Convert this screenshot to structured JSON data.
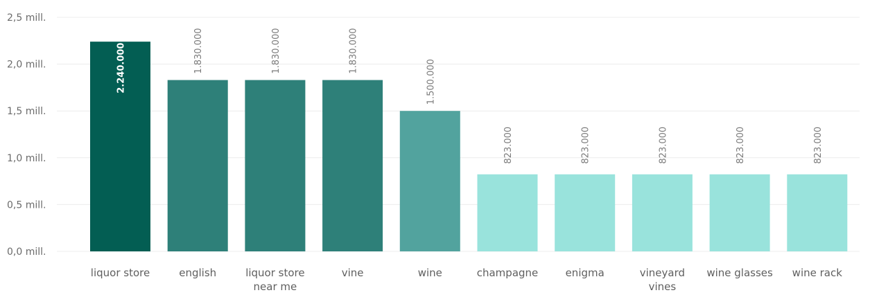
{
  "chart_data": {
    "type": "bar",
    "categories": [
      [
        "liquor store"
      ],
      [
        "english"
      ],
      [
        "liquor store",
        "near me"
      ],
      [
        "vine"
      ],
      [
        "wine"
      ],
      [
        "champagne"
      ],
      [
        "enigma"
      ],
      [
        "vineyard",
        "vines"
      ],
      [
        "wine glasses"
      ],
      [
        "wine rack"
      ]
    ],
    "values": [
      2240000,
      1830000,
      1830000,
      1830000,
      1500000,
      823000,
      823000,
      823000,
      823000,
      823000
    ],
    "data_labels": [
      "2.240.000",
      "1.830.000",
      "1.830.000",
      "1.830.000",
      "1.500.000",
      "823.000",
      "823.000",
      "823.000",
      "823.000",
      "823.000"
    ],
    "bar_colors": [
      "#035e53",
      "#2e8079",
      "#2e8079",
      "#2e8079",
      "#52a39e",
      "#99e3dc",
      "#99e3dc",
      "#99e3dc",
      "#99e3dc",
      "#99e3dc"
    ],
    "ylim": [
      0,
      2500000
    ],
    "yticks": [
      0,
      500000,
      1000000,
      1500000,
      2000000,
      2500000
    ],
    "ytick_labels": [
      "0,0 mill.",
      "0,5 mill.",
      "1,0 mill.",
      "1,5 mill.",
      "2,0 mill.",
      "2,5 mill."
    ],
    "title": "",
    "xlabel": "",
    "ylabel": "",
    "grid": true,
    "colors": {
      "gridline": "#ececec",
      "tick_text": "#6b6b6b",
      "label_text": "#7a7a7a"
    }
  }
}
